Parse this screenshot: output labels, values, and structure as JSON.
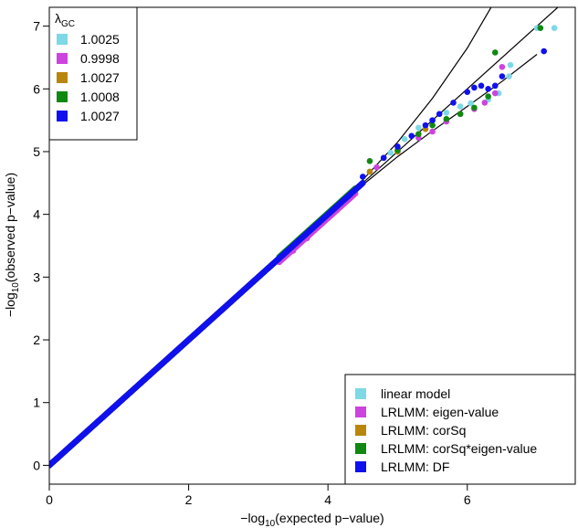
{
  "chart_data": {
    "type": "scatter",
    "title": "",
    "xlabel": "-log10(expected p-value)",
    "ylabel": "-log10(observed p-value)",
    "xlim": [
      0,
      7.55
    ],
    "ylim": [
      -0.3,
      7.3
    ],
    "x_ticks": [
      0,
      2,
      4,
      6
    ],
    "y_ticks": [
      0,
      1,
      2,
      3,
      4,
      5,
      6,
      7
    ],
    "grid": false,
    "reference_line": {
      "type": "identity",
      "x": [
        0,
        7.55
      ],
      "y": [
        0,
        7.55
      ]
    },
    "confidence_band": {
      "upper": [
        [
          4.0,
          4.0
        ],
        [
          4.5,
          4.55
        ],
        [
          5.0,
          5.15
        ],
        [
          5.5,
          5.85
        ],
        [
          6.0,
          6.65
        ],
        [
          6.5,
          7.6
        ]
      ],
      "lower": [
        [
          4.0,
          4.0
        ],
        [
          4.5,
          4.47
        ],
        [
          5.0,
          4.92
        ],
        [
          5.5,
          5.33
        ],
        [
          6.0,
          5.72
        ],
        [
          6.5,
          6.12
        ],
        [
          7.0,
          6.55
        ]
      ]
    },
    "lambda_legend": {
      "title_symbol": "λ",
      "title_subscript": "GC",
      "position": "top-left",
      "entries": [
        {
          "label": "1.0025",
          "color": "#7fd8e6"
        },
        {
          "label": "0.9998",
          "color": "#cc44dd"
        },
        {
          "label": "1.0027",
          "color": "#b8860b"
        },
        {
          "label": "1.0008",
          "color": "#118811"
        },
        {
          "label": "1.0027",
          "color": "#1010ee"
        }
      ]
    },
    "model_legend": {
      "position": "bottom-right",
      "entries": [
        {
          "label": "linear model",
          "color": "#7fd8e6"
        },
        {
          "label": "LRLMM: eigen-value",
          "color": "#cc44dd"
        },
        {
          "label": "LRLMM: corSq",
          "color": "#b8860b"
        },
        {
          "label": "LRLMM: corSq*eigen-value",
          "color": "#118811"
        },
        {
          "label": "LRLMM: DF",
          "color": "#1010ee"
        }
      ]
    },
    "series": [
      {
        "color": "#7fd8e6",
        "tail": [
          [
            4.6,
            4.68
          ],
          [
            4.9,
            4.98
          ],
          [
            5.1,
            5.2
          ],
          [
            5.3,
            5.38
          ],
          [
            5.5,
            5.5
          ],
          [
            5.7,
            5.62
          ],
          [
            5.9,
            5.72
          ],
          [
            6.05,
            5.77
          ],
          [
            6.3,
            5.83
          ],
          [
            6.45,
            5.93
          ],
          [
            6.6,
            6.2
          ],
          [
            6.62,
            6.38
          ],
          [
            7.0,
            6.97
          ],
          [
            7.25,
            6.97
          ]
        ]
      },
      {
        "color": "#cc44dd",
        "tail": [
          [
            3.5,
            3.42
          ],
          [
            3.7,
            3.62
          ],
          [
            4.7,
            4.75
          ],
          [
            5.0,
            5.0
          ],
          [
            5.3,
            5.22
          ],
          [
            5.5,
            5.32
          ],
          [
            5.7,
            5.48
          ],
          [
            5.9,
            5.6
          ],
          [
            6.1,
            5.68
          ],
          [
            6.25,
            5.78
          ],
          [
            6.4,
            5.93
          ],
          [
            6.5,
            6.35
          ]
        ]
      },
      {
        "color": "#b8860b",
        "tail": [
          [
            4.6,
            4.68
          ],
          [
            5.0,
            5.0
          ],
          [
            5.4,
            5.36
          ]
        ]
      },
      {
        "color": "#118811",
        "tail": [
          [
            4.6,
            4.85
          ],
          [
            4.8,
            4.9
          ],
          [
            5.0,
            5.02
          ],
          [
            5.3,
            5.28
          ],
          [
            5.5,
            5.42
          ],
          [
            5.7,
            5.52
          ],
          [
            5.9,
            5.6
          ],
          [
            6.1,
            5.7
          ],
          [
            6.3,
            5.88
          ],
          [
            6.4,
            6.58
          ],
          [
            7.05,
            6.97
          ]
        ]
      },
      {
        "color": "#1010ee",
        "tail": [
          [
            4.5,
            4.6
          ],
          [
            4.8,
            4.9
          ],
          [
            5.0,
            5.08
          ],
          [
            5.2,
            5.25
          ],
          [
            5.4,
            5.42
          ],
          [
            5.5,
            5.5
          ],
          [
            5.6,
            5.6
          ],
          [
            5.8,
            5.78
          ],
          [
            6.0,
            5.95
          ],
          [
            6.1,
            6.02
          ],
          [
            6.2,
            6.05
          ],
          [
            6.3,
            6.0
          ],
          [
            6.4,
            6.05
          ],
          [
            6.5,
            6.2
          ],
          [
            7.1,
            6.6
          ]
        ]
      }
    ]
  }
}
